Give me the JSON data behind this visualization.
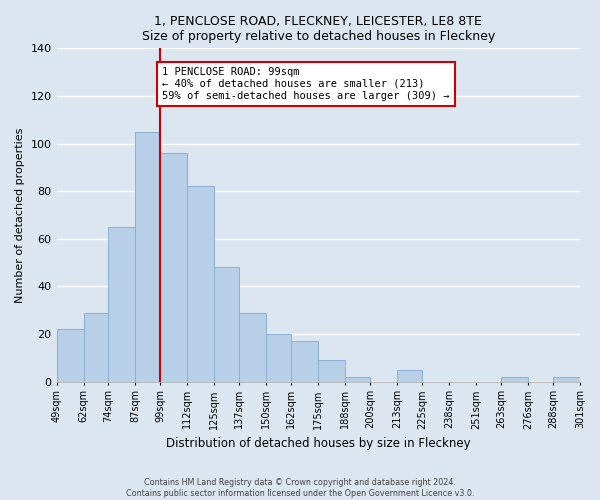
{
  "title": "1, PENCLOSE ROAD, FLECKNEY, LEICESTER, LE8 8TE",
  "subtitle": "Size of property relative to detached houses in Fleckney",
  "xlabel": "Distribution of detached houses by size in Fleckney",
  "ylabel": "Number of detached properties",
  "bar_edges": [
    49,
    62,
    74,
    87,
    99,
    112,
    125,
    137,
    150,
    162,
    175,
    188,
    200,
    213,
    225,
    238,
    251,
    263,
    276,
    288,
    301
  ],
  "bar_heights": [
    22,
    29,
    65,
    105,
    96,
    82,
    48,
    29,
    20,
    17,
    9,
    2,
    0,
    5,
    0,
    0,
    0,
    2,
    0,
    2
  ],
  "tick_labels": [
    "49sqm",
    "62sqm",
    "74sqm",
    "87sqm",
    "99sqm",
    "112sqm",
    "125sqm",
    "137sqm",
    "150sqm",
    "162sqm",
    "175sqm",
    "188sqm",
    "200sqm",
    "213sqm",
    "225sqm",
    "238sqm",
    "251sqm",
    "263sqm",
    "276sqm",
    "288sqm",
    "301sqm"
  ],
  "property_size": 99,
  "bar_color": "#b8cfe8",
  "bar_edge_color": "#8aafd4",
  "vline_color": "#cc0000",
  "annotation_text": "1 PENCLOSE ROAD: 99sqm\n← 40% of detached houses are smaller (213)\n59% of semi-detached houses are larger (309) →",
  "annotation_box_facecolor": "#ffffff",
  "annotation_border_color": "#cc0000",
  "ylim": [
    0,
    140
  ],
  "yticks": [
    0,
    20,
    40,
    60,
    80,
    100,
    120,
    140
  ],
  "background_color": "#dce6f0",
  "plot_background_color": "#dce6f0",
  "footer_line1": "Contains HM Land Registry data © Crown copyright and database right 2024.",
  "footer_line2": "Contains public sector information licensed under the Open Government Licence v3.0."
}
